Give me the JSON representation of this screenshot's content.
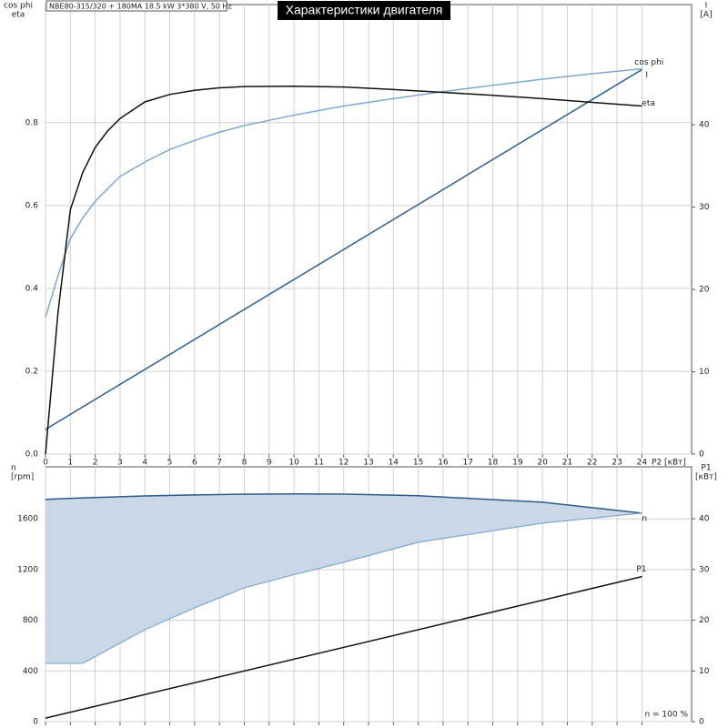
{
  "header": {
    "model": "NBE80-315/320 + 180MA  18.5 kW  3*380 V, 50 Hz",
    "title": "Характеристики двигателя"
  },
  "chart_data": [
    {
      "type": "line",
      "y_label": [
        "cos phi",
        "eta"
      ],
      "y2_label": [
        "I",
        "[A]"
      ],
      "x_label": "P2 [кВт]",
      "xlim": [
        0,
        26
      ],
      "xticks": [
        0,
        1,
        2,
        3,
        4,
        5,
        6,
        7,
        8,
        9,
        10,
        11,
        12,
        13,
        14,
        15,
        16,
        17,
        18,
        19,
        20,
        21,
        22,
        23,
        24
      ],
      "xtick_labels": true,
      "ylim": [
        0,
        1.085
      ],
      "yticks": [
        {
          "value": 0,
          "label": "0.0"
        },
        0.2,
        0.4,
        0.6,
        0.8
      ],
      "y2lim": [
        0,
        54.6
      ],
      "y2ticks": [
        0,
        10,
        20,
        30,
        40
      ],
      "grid": true,
      "series": [
        {
          "name": "cos phi",
          "color": "#7fa8cf",
          "x": [
            0,
            0.5,
            1,
            1.5,
            2,
            3,
            4,
            5,
            6,
            7,
            8,
            10,
            12,
            14,
            16,
            18,
            20,
            22,
            24
          ],
          "values": [
            0.33,
            0.43,
            0.52,
            0.57,
            0.61,
            0.67,
            0.705,
            0.735,
            0.757,
            0.777,
            0.793,
            0.818,
            0.84,
            0.858,
            0.875,
            0.89,
            0.905,
            0.918,
            0.93
          ]
        },
        {
          "name": "I",
          "color": "#2e5f8e",
          "axis": "y2",
          "x": [
            0,
            24
          ],
          "values": [
            3,
            46.7
          ]
        },
        {
          "name": "eta",
          "color": "#111111",
          "x": [
            0,
            0.5,
            1,
            1.5,
            2,
            2.5,
            3,
            4,
            5,
            6,
            7,
            8,
            10,
            12,
            14,
            16,
            18,
            20,
            22,
            24
          ],
          "values": [
            0,
            0.34,
            0.59,
            0.68,
            0.74,
            0.78,
            0.81,
            0.85,
            0.868,
            0.878,
            0.884,
            0.887,
            0.888,
            0.886,
            0.88,
            0.873,
            0.866,
            0.858,
            0.849,
            0.84
          ]
        }
      ]
    },
    {
      "type": "area",
      "y_label": [
        "n",
        "[rpm]"
      ],
      "y2_label": [
        "P1",
        "[кВт]"
      ],
      "annotation": "n = 100 %",
      "xlim": [
        0,
        26
      ],
      "xticks": [
        0,
        1,
        2,
        3,
        4,
        5,
        6,
        7,
        8,
        9,
        10,
        11,
        12,
        13,
        14,
        15,
        16,
        17,
        18,
        19,
        20,
        21,
        22,
        23,
        24
      ],
      "xtick_labels": false,
      "ylim": [
        0,
        2010
      ],
      "yticks": [
        0,
        400,
        800,
        1200,
        1600
      ],
      "y2lim": [
        0,
        50.25
      ],
      "y2ticks": [
        0,
        10,
        20,
        30,
        40
      ],
      "grid": true,
      "series": [
        {
          "name": "n",
          "color": "#c9d7e7",
          "x": [
            0,
            1.5,
            4,
            6,
            8,
            10,
            12,
            15,
            20,
            24
          ],
          "values": [
            1753,
            1765,
            1780,
            1788,
            1794,
            1796,
            1795,
            1782,
            1731,
            1645
          ],
          "low": [
            460,
            460,
            725,
            898,
            1056,
            1160,
            1257,
            1415,
            1566,
            1645
          ]
        },
        {
          "name": "P1",
          "color": "#111111",
          "axis": "y2",
          "x": [
            0,
            24
          ],
          "values": [
            0.7,
            28.6
          ]
        }
      ]
    }
  ]
}
